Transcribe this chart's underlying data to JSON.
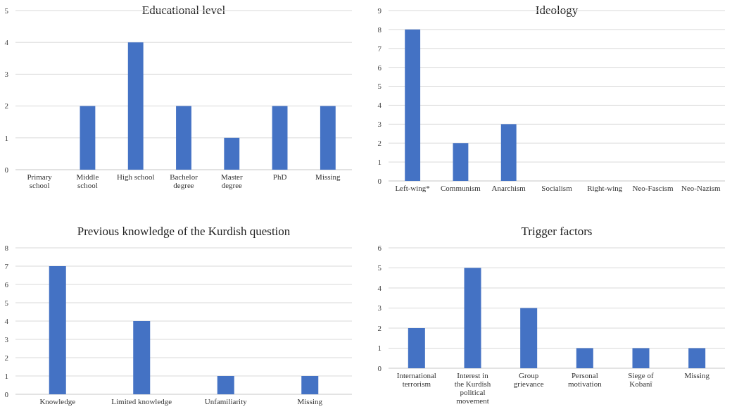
{
  "chart_data": [
    {
      "type": "bar",
      "title": "Educational level",
      "categories": [
        "Primary school",
        "Middle school",
        "High school",
        "Bachelor degree",
        "Master degree",
        "PhD",
        "Missing"
      ],
      "values": [
        0,
        2,
        4,
        2,
        1,
        2,
        2
      ],
      "color": "#4472c4",
      "ylim": [
        0,
        5
      ],
      "yticks": [
        0,
        1,
        2,
        3,
        4,
        5
      ],
      "grid": "y"
    },
    {
      "type": "bar",
      "title": "Ideology",
      "categories": [
        "Left-wing*",
        "Communism",
        "Anarchism",
        "Socialism",
        "Right-wing",
        "Neo-Fascism",
        "Neo-Nazism"
      ],
      "values": [
        8,
        2,
        3,
        0,
        0,
        0,
        0
      ],
      "color": "#4472c4",
      "ylim": [
        0,
        9
      ],
      "yticks": [
        0,
        1,
        2,
        3,
        4,
        5,
        6,
        7,
        8,
        9
      ],
      "grid": "y"
    },
    {
      "type": "bar",
      "title": "Previous knowledge of the Kurdish question",
      "categories": [
        "Knowledge",
        "Limited knowledge",
        "Unfamiliarity",
        "Missing"
      ],
      "values": [
        7,
        4,
        1,
        1
      ],
      "color": "#4472c4",
      "ylim": [
        0,
        8
      ],
      "yticks": [
        0,
        1,
        2,
        3,
        4,
        5,
        6,
        7,
        8
      ],
      "grid": "y"
    },
    {
      "type": "bar",
      "title": "Trigger factors",
      "categories": [
        "International terrorism",
        "Interest in the Kurdish political movement",
        "Group grievance",
        "Personal motivation",
        "Siege of Kobanî",
        "Missing"
      ],
      "values": [
        2,
        5,
        3,
        1,
        1,
        1
      ],
      "color": "#4472c4",
      "ylim": [
        0,
        6
      ],
      "yticks": [
        0,
        1,
        2,
        3,
        4,
        5,
        6
      ],
      "grid": "y"
    }
  ]
}
